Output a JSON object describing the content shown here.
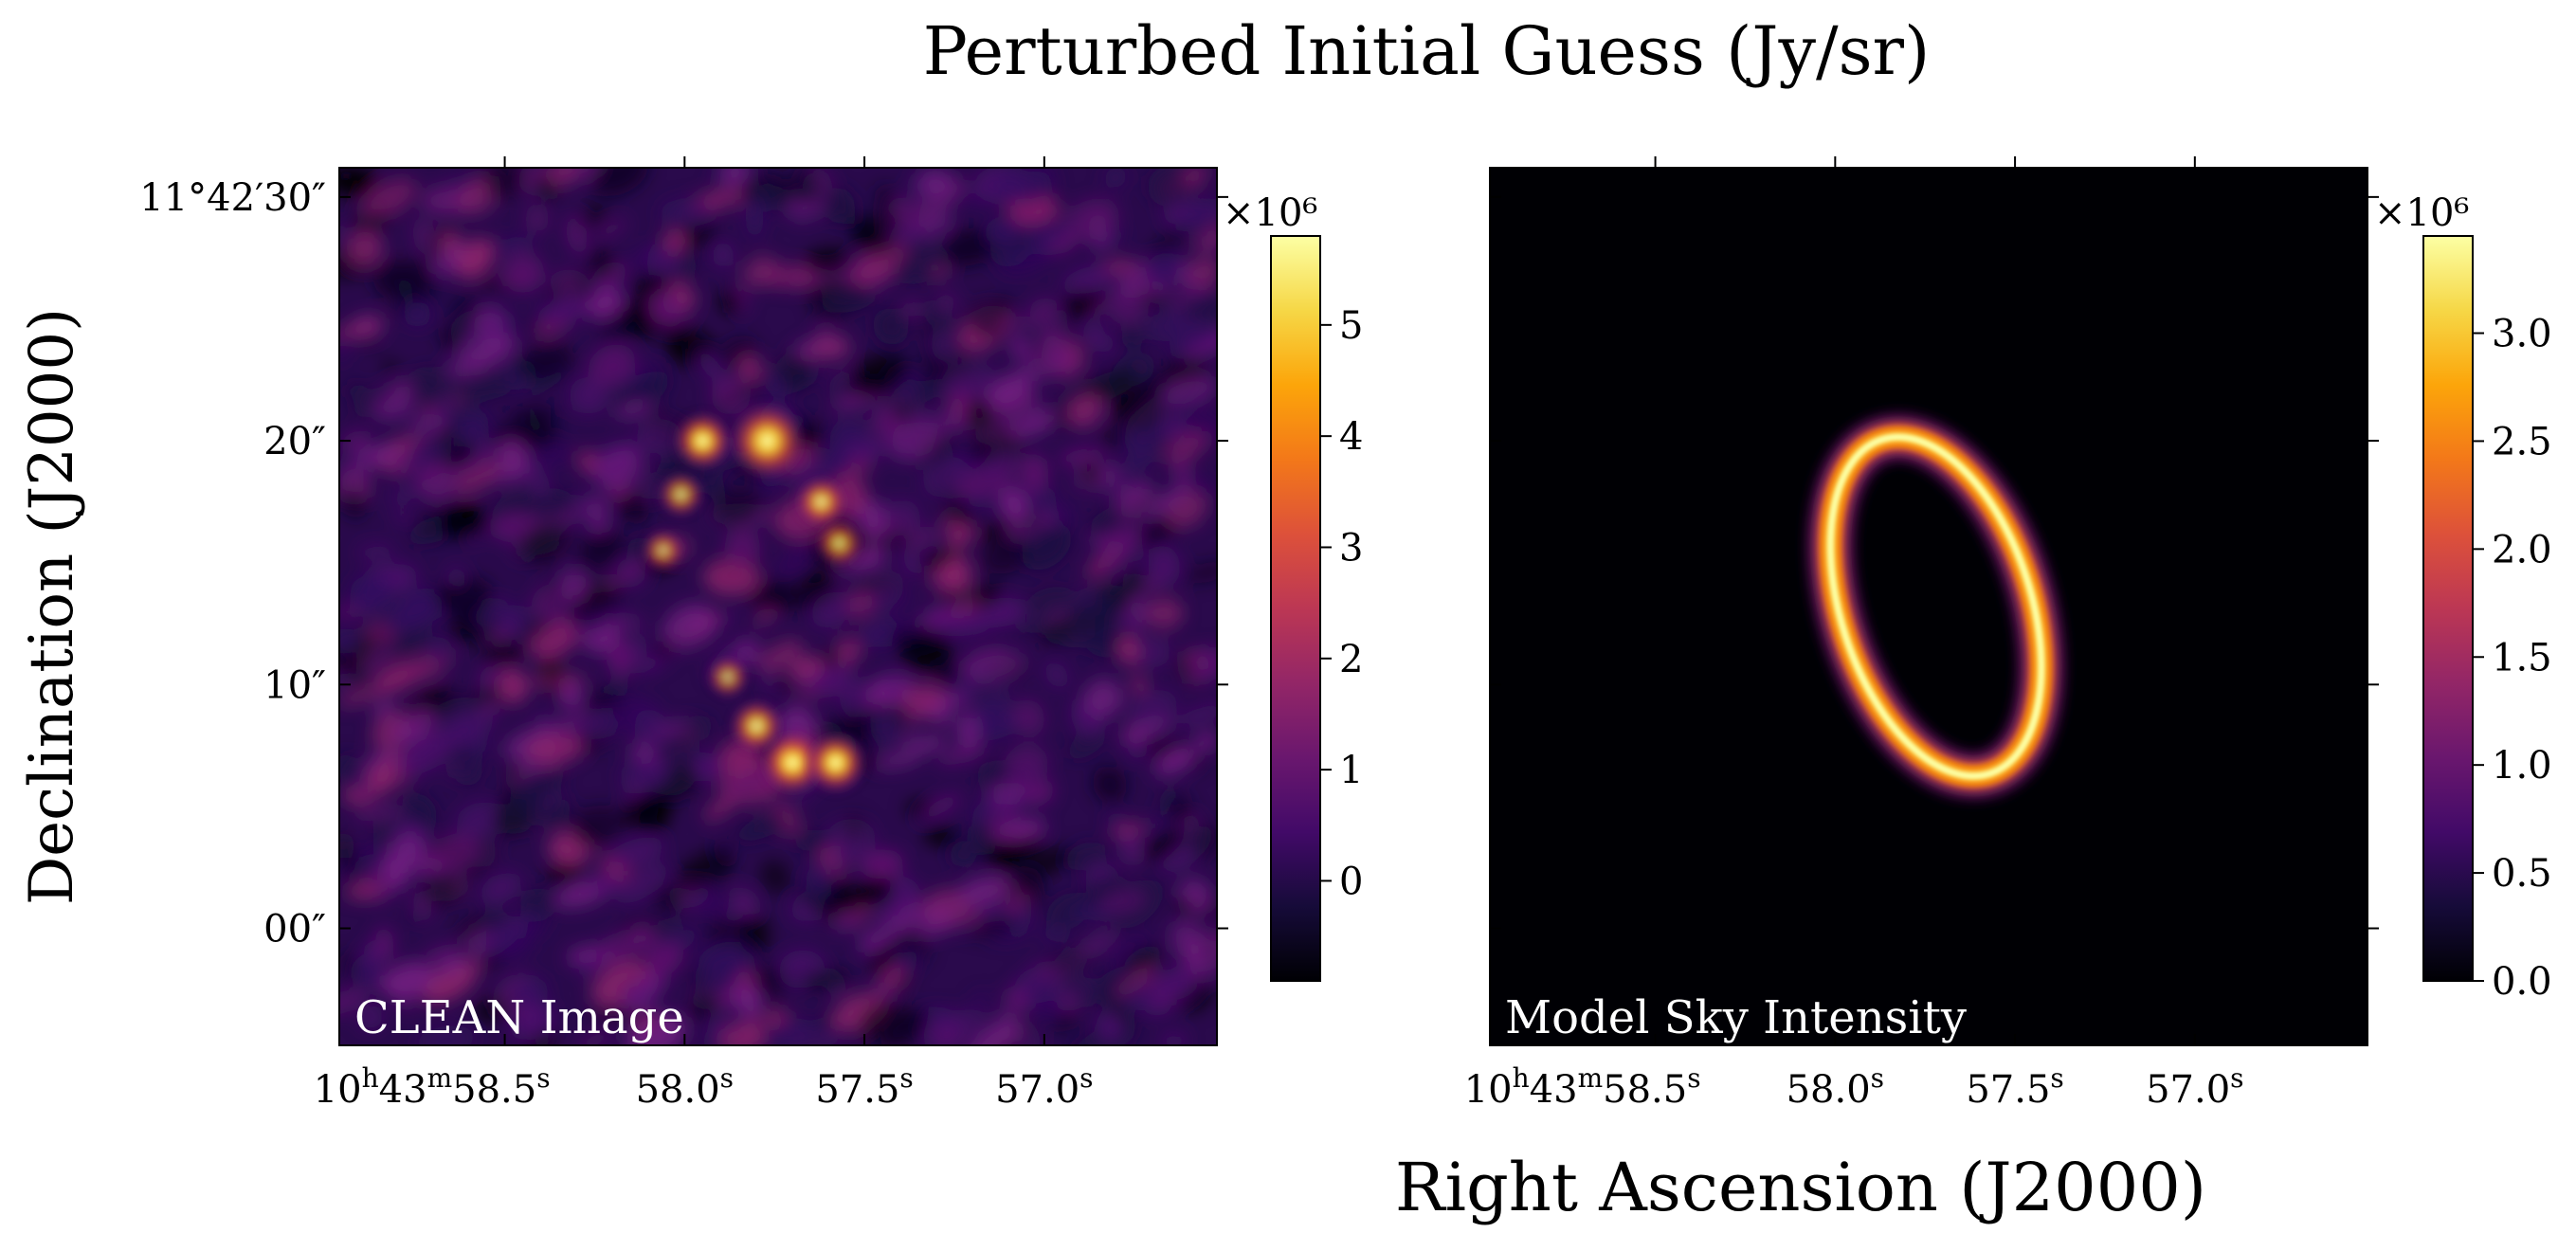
{
  "figure": {
    "title": "Perturbed Initial Guess (Jy/sr)",
    "ylabel": "Declination (J2000)",
    "xlabel": "Right Ascension (J2000)"
  },
  "chart_data": [
    {
      "type": "heatmap",
      "panel_label": "CLEAN Image",
      "colormap": "inferno",
      "x_ticks": [
        {
          "ra_s": 58.5,
          "label": "10h43m58.5s"
        },
        {
          "ra_s": 58.0,
          "label": "58.0s"
        },
        {
          "ra_s": 57.5,
          "label": "57.5s"
        },
        {
          "ra_s": 57.0,
          "label": "57.0s"
        }
      ],
      "y_ticks": [
        {
          "dec_arcsec": 30,
          "label": "11°42′30″"
        },
        {
          "dec_arcsec": 20,
          "label": "20″"
        },
        {
          "dec_arcsec": 10,
          "label": "10″"
        },
        {
          "dec_arcsec": 0,
          "label": "00″"
        }
      ],
      "x_range_s": [
        58.96,
        56.52
      ],
      "y_range_arcsec": [
        -4.8,
        31.2
      ],
      "colorbar": {
        "multiplier": "×10⁶",
        "range": [
          -0.9,
          5.8
        ],
        "ticks": [
          0,
          1,
          2,
          3,
          4,
          5
        ]
      },
      "sources": [
        {
          "ra_s": 57.77,
          "dec_arcsec": 20.0,
          "peak": 5.8
        },
        {
          "ra_s": 57.95,
          "dec_arcsec": 20.0,
          "peak": 3.8
        },
        {
          "ra_s": 57.7,
          "dec_arcsec": 6.8,
          "peak": 4.4
        },
        {
          "ra_s": 57.58,
          "dec_arcsec": 6.8,
          "peak": 4.1
        },
        {
          "ra_s": 57.62,
          "dec_arcsec": 17.5,
          "peak": 3.0
        },
        {
          "ra_s": 57.57,
          "dec_arcsec": 15.8,
          "peak": 2.6
        },
        {
          "ra_s": 58.01,
          "dec_arcsec": 17.8,
          "peak": 2.4
        },
        {
          "ra_s": 58.06,
          "dec_arcsec": 15.5,
          "peak": 2.0
        },
        {
          "ra_s": 57.8,
          "dec_arcsec": 8.3,
          "peak": 3.2
        },
        {
          "ra_s": 57.88,
          "dec_arcsec": 10.3,
          "peak": 2.0
        }
      ]
    },
    {
      "type": "heatmap",
      "panel_label": "Model Sky Intensity",
      "colormap": "inferno",
      "x_ticks": [
        {
          "ra_s": 58.5,
          "label": "10h43m58.5s"
        },
        {
          "ra_s": 58.0,
          "label": "58.0s"
        },
        {
          "ra_s": 57.5,
          "label": "57.5s"
        },
        {
          "ra_s": 57.0,
          "label": "57.0s"
        }
      ],
      "x_range_s": [
        58.96,
        56.52
      ],
      "y_range_arcsec": [
        -4.8,
        31.2
      ],
      "colorbar": {
        "multiplier": "×10⁶",
        "range": [
          0,
          3.45
        ],
        "ticks": [
          0.0,
          0.5,
          1.0,
          1.5,
          2.0,
          2.5,
          3.0
        ]
      },
      "ring": {
        "center_ra_s": 57.72,
        "center_dec_arcsec": 13.2,
        "semi_major_arcsec": 7.2,
        "semi_minor_arcsec": 3.9,
        "position_angle_deg": -18,
        "peak": 3.45
      }
    }
  ]
}
